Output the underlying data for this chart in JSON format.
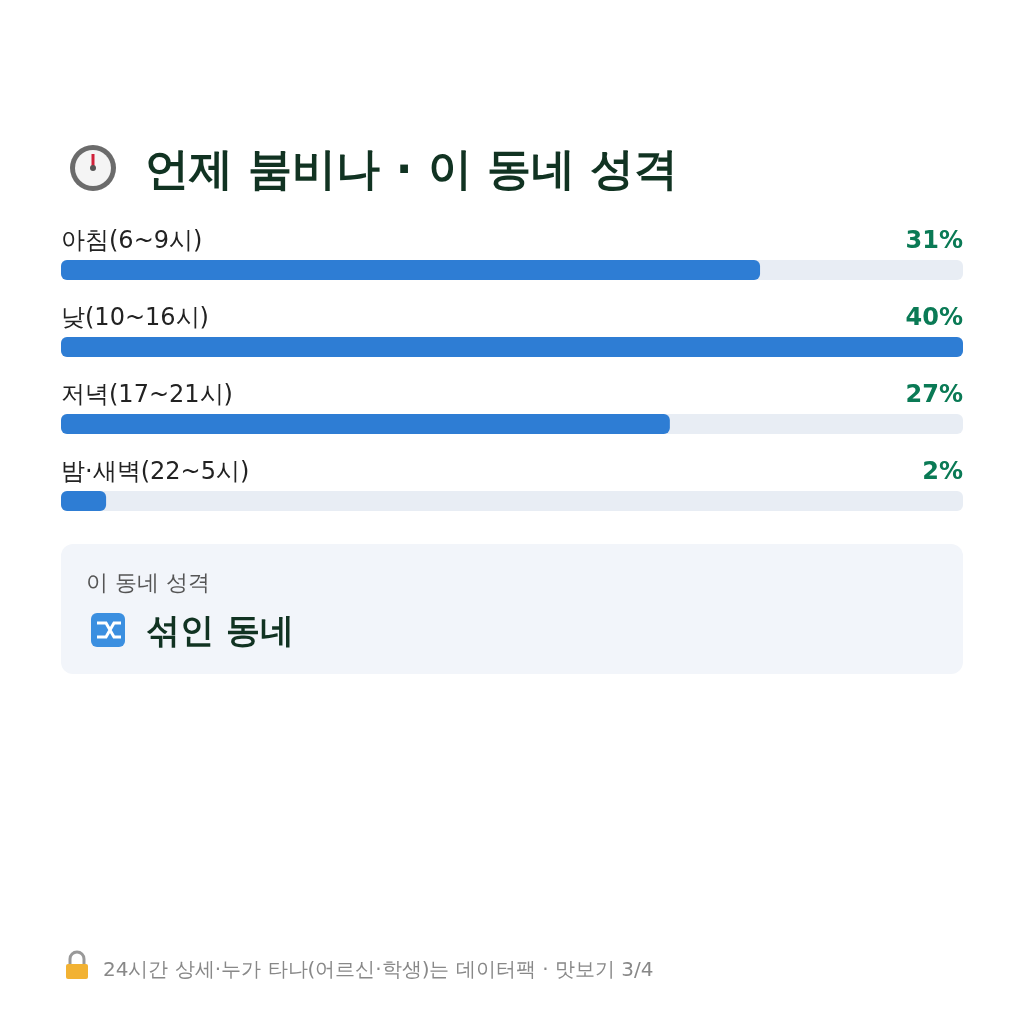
{
  "chart_data": {
    "type": "bar",
    "orientation": "horizontal",
    "title": "언제 붐비나 · 이 동네 성격",
    "categories": [
      "아침(6~9시)",
      "낮(10~16시)",
      "저녁(17~21시)",
      "밤·새벽(22~5시)"
    ],
    "values": [
      31,
      40,
      27,
      2
    ],
    "color": "#2e7dd4",
    "value_labels": [
      "31%",
      "40%",
      "27%",
      "2%"
    ],
    "annotations": [
      "이 동네 성격",
      "섞인 동네",
      "24시간 상세·누가 타나(어르신·학생)는 데이터팩 · 맛보기 3/4"
    ]
  }
}
